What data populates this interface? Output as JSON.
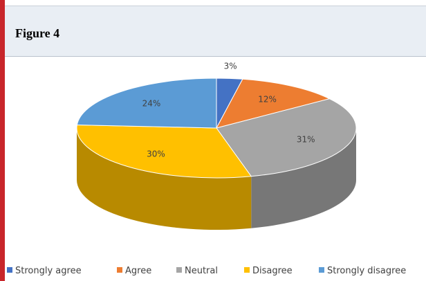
{
  "header": {
    "title": "Figure 4"
  },
  "chart_data": {
    "type": "pie",
    "categories": [
      "Strongly agree",
      "Agree",
      "Neutral",
      "Disagree",
      "Strongly disagree"
    ],
    "values": [
      3,
      12,
      31,
      30,
      24
    ],
    "labels": [
      "3%",
      "12%",
      "31%",
      "30%",
      "24%"
    ],
    "colors": [
      "#4472c4",
      "#ed7d31",
      "#a5a5a5",
      "#ffc000",
      "#5b9bd5"
    ],
    "legend_position": "bottom",
    "title": ""
  }
}
